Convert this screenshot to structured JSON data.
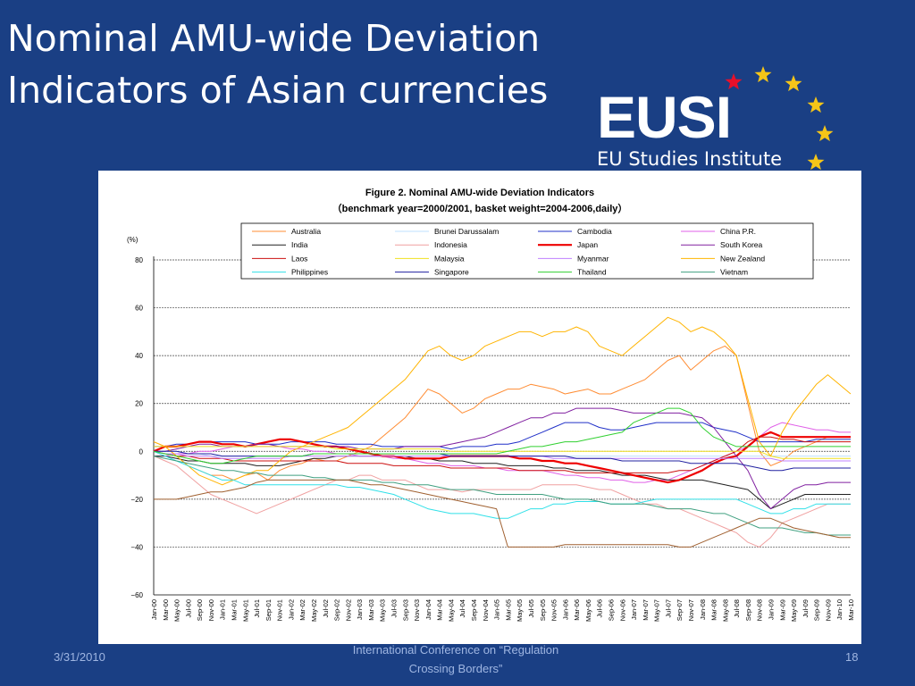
{
  "slide": {
    "title_line1": "Nominal AMU-wide Deviation",
    "title_line2": "Indicators of Asian currencies",
    "logo_word": "EUSI",
    "logo_sub": "EU Studies Institute",
    "footer_date": "3/31/2010",
    "footer_conf_line1": "International Conference on “Regulation",
    "footer_conf_line2": "Crossing Borders”",
    "footer_page": "18"
  },
  "chart_data": {
    "type": "line",
    "title": "Figure 2. Nominal AMU-wide Deviation Indicators",
    "subtitle": "（benchmark year=2000/2001, basket weight=2004-2006,daily）",
    "ylabel": "(%)",
    "ylim": [
      -60,
      80
    ],
    "yticks": [
      80,
      60,
      40,
      20,
      0,
      -20,
      -40,
      -60
    ],
    "grid": true,
    "legend_position": "top",
    "x": [
      "Jan-00",
      "Mar-00",
      "May-00",
      "Jul-00",
      "Sep-00",
      "Nov-00",
      "Jan-01",
      "Mar-01",
      "May-01",
      "Jul-01",
      "Sep-01",
      "Nov-01",
      "Jan-02",
      "Mar-02",
      "May-02",
      "Jul-02",
      "Sep-02",
      "Nov-02",
      "Jan-03",
      "Mar-03",
      "May-03",
      "Jul-03",
      "Sep-03",
      "Nov-03",
      "Jan-04",
      "Mar-04",
      "May-04",
      "Jul-04",
      "Sep-04",
      "Nov-04",
      "Jan-05",
      "Mar-05",
      "May-05",
      "Jul-05",
      "Sep-05",
      "Nov-05",
      "Jan-06",
      "Mar-06",
      "May-06",
      "Jul-06",
      "Sep-06",
      "Nov-06",
      "Jan-07",
      "Mar-07",
      "May-07",
      "Jul-07",
      "Sep-07",
      "Nov-07",
      "Jan-08",
      "Mar-08",
      "May-08",
      "Jul-08",
      "Sep-08",
      "Nov-08",
      "Jan-09",
      "Mar-09",
      "May-09",
      "Jul-09",
      "Sep-09",
      "Nov-09",
      "Jan-10",
      "Mar-10"
    ],
    "series": [
      {
        "name": "Australia",
        "color": "#ff8c33",
        "width": 1,
        "values": [
          4,
          2,
          -2,
          -6,
          -8,
          -10,
          -10,
          -12,
          -10,
          -9,
          -12,
          -8,
          -6,
          -5,
          -3,
          -4,
          -4,
          -2,
          0,
          2,
          6,
          10,
          14,
          20,
          26,
          24,
          20,
          16,
          18,
          22,
          24,
          26,
          26,
          28,
          27,
          26,
          24,
          25,
          26,
          24,
          24,
          26,
          28,
          30,
          34,
          38,
          40,
          34,
          38,
          42,
          44,
          40,
          20,
          0,
          -6,
          -4,
          0,
          2,
          4,
          6,
          6,
          6
        ]
      },
      {
        "name": "Brunei Darussalam",
        "color": "#bfe0ff",
        "width": 1,
        "values": [
          0,
          0,
          0,
          -1,
          -1,
          -2,
          -2,
          -2,
          -2,
          -2,
          -2,
          -2,
          -2,
          -2,
          -1,
          -1,
          -1,
          -1,
          -1,
          -1,
          -1,
          -1,
          -1,
          -1,
          -1,
          -1,
          -2,
          -2,
          -2,
          -2,
          -2,
          -2,
          -2,
          -2,
          -2,
          -2,
          -2,
          -2,
          -2,
          -2,
          -2,
          -2,
          -2,
          -2,
          -2,
          -2,
          -2,
          -2,
          -2,
          -2,
          -2,
          -2,
          -2,
          -2,
          -2,
          -2,
          -2,
          -2,
          -2,
          -2,
          -2,
          -2
        ]
      },
      {
        "name": "Cambodia",
        "color": "#2030c8",
        "width": 1,
        "values": [
          2,
          2,
          3,
          3,
          4,
          4,
          4,
          4,
          4,
          3,
          3,
          3,
          4,
          4,
          4,
          4,
          3,
          3,
          3,
          3,
          2,
          2,
          2,
          2,
          2,
          2,
          1,
          2,
          2,
          2,
          3,
          3,
          4,
          6,
          8,
          10,
          12,
          12,
          12,
          10,
          9,
          9,
          10,
          11,
          12,
          12,
          12,
          12,
          12,
          10,
          9,
          8,
          6,
          4,
          4,
          4,
          4,
          4,
          5,
          5,
          5,
          5
        ]
      },
      {
        "name": "China P.R.",
        "color": "#e060e8",
        "width": 1,
        "values": [
          -2,
          -2,
          -1,
          -1,
          0,
          0,
          1,
          2,
          2,
          2,
          2,
          2,
          1,
          1,
          0,
          0,
          -1,
          -1,
          -2,
          -2,
          -2,
          -3,
          -3,
          -4,
          -5,
          -5,
          -6,
          -6,
          -6,
          -7,
          -7,
          -8,
          -8,
          -8,
          -8,
          -9,
          -10,
          -10,
          -11,
          -11,
          -12,
          -12,
          -13,
          -13,
          -12,
          -12,
          -10,
          -8,
          -6,
          -4,
          -2,
          0,
          2,
          6,
          10,
          12,
          11,
          10,
          9,
          9,
          8,
          8
        ]
      },
      {
        "name": "India",
        "color": "#202020",
        "width": 1,
        "values": [
          -2,
          -2,
          -3,
          -4,
          -4,
          -5,
          -5,
          -5,
          -5,
          -6,
          -6,
          -6,
          -5,
          -4,
          -3,
          -3,
          -2,
          -2,
          -2,
          -2,
          -2,
          -2,
          -2,
          -3,
          -3,
          -4,
          -4,
          -4,
          -5,
          -5,
          -5,
          -6,
          -6,
          -6,
          -6,
          -7,
          -7,
          -8,
          -8,
          -8,
          -9,
          -10,
          -10,
          -10,
          -11,
          -12,
          -12,
          -12,
          -12,
          -13,
          -14,
          -15,
          -16,
          -20,
          -24,
          -22,
          -20,
          -18,
          -18,
          -18,
          -18,
          -18
        ]
      },
      {
        "name": "Indonesia",
        "color": "#f0a0a0",
        "width": 1,
        "values": [
          -2,
          -4,
          -6,
          -10,
          -14,
          -18,
          -20,
          -22,
          -24,
          -26,
          -24,
          -22,
          -20,
          -18,
          -16,
          -14,
          -12,
          -12,
          -10,
          -10,
          -12,
          -12,
          -12,
          -14,
          -16,
          -16,
          -16,
          -17,
          -16,
          -16,
          -16,
          -16,
          -16,
          -16,
          -14,
          -14,
          -14,
          -14,
          -15,
          -16,
          -16,
          -18,
          -20,
          -22,
          -22,
          -24,
          -24,
          -26,
          -28,
          -30,
          -32,
          -34,
          -38,
          -40,
          -36,
          -30,
          -28,
          -26,
          -24,
          -22,
          -22,
          -22
        ]
      },
      {
        "name": "Japan",
        "color": "#ee0000",
        "width": 2.2,
        "values": [
          0,
          2,
          2,
          3,
          4,
          4,
          3,
          3,
          2,
          3,
          4,
          5,
          5,
          4,
          3,
          2,
          2,
          1,
          0,
          -1,
          -2,
          -2,
          -3,
          -3,
          -3,
          -3,
          -2,
          -2,
          -2,
          -2,
          -2,
          -2,
          -3,
          -3,
          -4,
          -4,
          -5,
          -5,
          -6,
          -7,
          -8,
          -9,
          -10,
          -11,
          -12,
          -13,
          -12,
          -10,
          -8,
          -5,
          -3,
          -2,
          2,
          6,
          8,
          6,
          6,
          6,
          6,
          6,
          6,
          6
        ]
      },
      {
        "name": "South Korea",
        "color": "#8020a0",
        "width": 1,
        "values": [
          0,
          0,
          1,
          2,
          3,
          3,
          2,
          2,
          2,
          3,
          3,
          2,
          2,
          2,
          2,
          2,
          2,
          2,
          1,
          1,
          1,
          1,
          2,
          2,
          2,
          2,
          3,
          4,
          5,
          6,
          8,
          10,
          12,
          14,
          14,
          16,
          16,
          18,
          18,
          18,
          18,
          17,
          16,
          16,
          16,
          16,
          16,
          15,
          14,
          10,
          4,
          -2,
          -8,
          -18,
          -24,
          -20,
          -16,
          -14,
          -14,
          -13,
          -13,
          -13
        ]
      },
      {
        "name": "Laos",
        "color": "#cc1010",
        "width": 1,
        "values": [
          0,
          -1,
          -2,
          -2,
          -3,
          -3,
          -3,
          -4,
          -4,
          -4,
          -4,
          -4,
          -4,
          -4,
          -4,
          -4,
          -4,
          -5,
          -5,
          -5,
          -5,
          -6,
          -6,
          -6,
          -6,
          -6,
          -7,
          -7,
          -7,
          -7,
          -7,
          -7,
          -8,
          -8,
          -8,
          -8,
          -8,
          -9,
          -9,
          -9,
          -9,
          -9,
          -9,
          -9,
          -9,
          -9,
          -8,
          -8,
          -6,
          -4,
          -2,
          0,
          4,
          6,
          6,
          5,
          5,
          4,
          4,
          4,
          4,
          4
        ]
      },
      {
        "name": "Malaysia",
        "color": "#f0e020",
        "width": 1,
        "values": [
          2,
          2,
          2,
          2,
          2,
          2,
          2,
          2,
          2,
          2,
          2,
          2,
          2,
          2,
          2,
          2,
          1,
          1,
          1,
          1,
          1,
          1,
          1,
          1,
          1,
          1,
          0,
          0,
          0,
          0,
          0,
          0,
          0,
          0,
          0,
          0,
          0,
          0,
          0,
          0,
          0,
          0,
          0,
          0,
          0,
          0,
          0,
          0,
          0,
          0,
          0,
          0,
          0,
          0,
          -2,
          -3,
          -3,
          -3,
          -3,
          -3,
          -3,
          -3
        ]
      },
      {
        "name": "Myanmar",
        "color": "#c080ff",
        "width": 1,
        "values": [
          0,
          -1,
          -1,
          -2,
          -2,
          -2,
          -3,
          -3,
          -3,
          -3,
          -3,
          -3,
          -2,
          -2,
          -2,
          -2,
          -2,
          -2,
          -2,
          -2,
          -2,
          -2,
          -2,
          -2,
          -2,
          -2,
          -2,
          -2,
          -2,
          -2,
          -2,
          -2,
          -2,
          -2,
          -2,
          -3,
          -3,
          -3,
          -3,
          -3,
          -3,
          -3,
          -3,
          -3,
          -3,
          -3,
          -3,
          -3,
          -3,
          -3,
          -3,
          -3,
          -3,
          -3,
          -3,
          -4,
          -4,
          -4,
          -4,
          -4,
          -4,
          -4
        ]
      },
      {
        "name": "New Zealand",
        "color": "#ffb400",
        "width": 1,
        "values": [
          4,
          2,
          -2,
          -6,
          -10,
          -12,
          -14,
          -12,
          -10,
          -8,
          -8,
          -4,
          0,
          2,
          4,
          6,
          8,
          10,
          14,
          18,
          22,
          26,
          30,
          36,
          42,
          44,
          40,
          38,
          40,
          44,
          46,
          48,
          50,
          50,
          48,
          50,
          50,
          52,
          50,
          44,
          42,
          40,
          44,
          48,
          52,
          56,
          54,
          50,
          52,
          50,
          46,
          40,
          22,
          4,
          -2,
          8,
          16,
          22,
          28,
          32,
          28,
          24
        ]
      },
      {
        "name": "Philippines",
        "color": "#30e0e8",
        "width": 1,
        "values": [
          0,
          -2,
          -4,
          -6,
          -8,
          -10,
          -12,
          -12,
          -14,
          -14,
          -14,
          -14,
          -14,
          -14,
          -14,
          -14,
          -14,
          -15,
          -15,
          -16,
          -17,
          -18,
          -20,
          -22,
          -24,
          -25,
          -26,
          -26,
          -26,
          -27,
          -28,
          -28,
          -26,
          -24,
          -24,
          -22,
          -22,
          -21,
          -21,
          -21,
          -22,
          -22,
          -22,
          -21,
          -20,
          -20,
          -20,
          -20,
          -20,
          -20,
          -20,
          -20,
          -22,
          -24,
          -26,
          -26,
          -24,
          -24,
          -22,
          -22,
          -22,
          -22
        ]
      },
      {
        "name": "Singapore",
        "color": "#2020a0",
        "width": 1,
        "values": [
          0,
          0,
          0,
          -1,
          -1,
          -1,
          -2,
          -2,
          -2,
          -2,
          -2,
          -2,
          -2,
          -2,
          -1,
          -1,
          -1,
          -1,
          -1,
          -1,
          -1,
          -1,
          -1,
          -1,
          -1,
          -1,
          -2,
          -2,
          -2,
          -2,
          -2,
          -2,
          -2,
          -2,
          -2,
          -2,
          -2,
          -3,
          -3,
          -3,
          -3,
          -4,
          -4,
          -4,
          -4,
          -4,
          -4,
          -5,
          -5,
          -5,
          -5,
          -5,
          -6,
          -7,
          -8,
          -8,
          -7,
          -7,
          -7,
          -7,
          -7,
          -7
        ]
      },
      {
        "name": "Thailand",
        "color": "#30d030",
        "width": 1,
        "values": [
          0,
          -1,
          -2,
          -3,
          -4,
          -5,
          -5,
          -4,
          -3,
          -2,
          -2,
          -2,
          -2,
          -2,
          -1,
          -1,
          -1,
          -1,
          -1,
          -1,
          -1,
          -1,
          -1,
          -1,
          -1,
          -1,
          -1,
          -1,
          -1,
          -1,
          -1,
          0,
          1,
          2,
          2,
          3,
          4,
          4,
          5,
          6,
          7,
          8,
          12,
          14,
          16,
          18,
          18,
          16,
          10,
          6,
          4,
          2,
          2,
          2,
          2,
          2,
          2,
          2,
          2,
          2,
          2,
          2
        ]
      },
      {
        "name": "Vietnam",
        "color": "#40a080",
        "width": 1,
        "values": [
          -2,
          -3,
          -4,
          -5,
          -6,
          -7,
          -8,
          -8,
          -9,
          -9,
          -10,
          -10,
          -10,
          -10,
          -11,
          -11,
          -12,
          -12,
          -12,
          -12,
          -13,
          -13,
          -14,
          -14,
          -14,
          -15,
          -16,
          -16,
          -16,
          -17,
          -18,
          -18,
          -18,
          -18,
          -18,
          -19,
          -20,
          -20,
          -20,
          -21,
          -22,
          -22,
          -22,
          -22,
          -23,
          -24,
          -24,
          -24,
          -25,
          -26,
          -26,
          -28,
          -30,
          -32,
          -32,
          -32,
          -33,
          -34,
          -34,
          -35,
          -35,
          -35
        ]
      },
      {
        "name": "",
        "color": "#a06030",
        "width": 1,
        "values": [
          -20,
          -20,
          -20,
          -19,
          -18,
          -17,
          -17,
          -16,
          -15,
          -13,
          -12,
          -12,
          -12,
          -12,
          -12,
          -12,
          -12,
          -12,
          -13,
          -14,
          -14,
          -15,
          -16,
          -17,
          -18,
          -19,
          -20,
          -21,
          -22,
          -23,
          -24,
          -40,
          -40,
          -40,
          -40,
          -40,
          -39,
          -39,
          -39,
          -39,
          -39,
          -39,
          -39,
          -39,
          -39,
          -39,
          -40,
          -40,
          -38,
          -36,
          -34,
          -32,
          -30,
          -28,
          -28,
          -30,
          -32,
          -33,
          -34,
          -35,
          -36,
          -36
        ]
      }
    ]
  }
}
